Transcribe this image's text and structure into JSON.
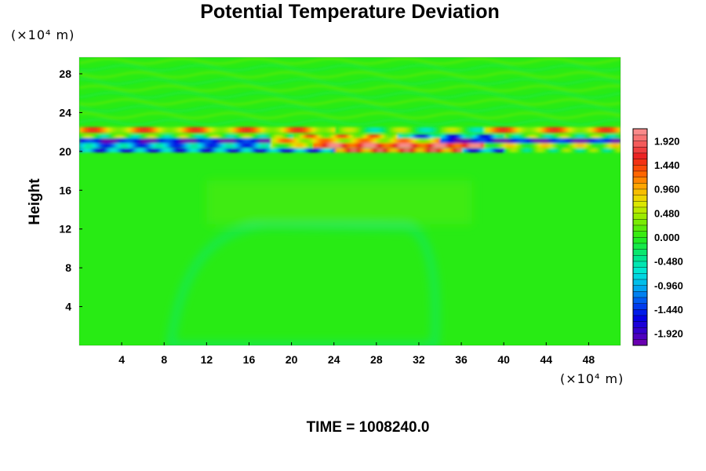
{
  "chart_data": {
    "type": "heatmap",
    "title": "Potential Temperature Deviation",
    "ylabel": "Height",
    "xlabel": "",
    "y_unit": "(×10⁴ m)",
    "x_unit": "(×10⁴ m)",
    "xlim": [
      0,
      51
    ],
    "ylim": [
      0,
      29.7
    ],
    "x_ticks": [
      "4",
      "8",
      "12",
      "16",
      "20",
      "24",
      "28",
      "32",
      "36",
      "40",
      "44",
      "48"
    ],
    "y_ticks": [
      "4",
      "8",
      "12",
      "16",
      "20",
      "24",
      "28"
    ],
    "colorbar": {
      "min": -2.16,
      "max": 2.16,
      "step": 0.12,
      "labels": [
        "1.920",
        "1.440",
        "0.960",
        "0.480",
        "0.000",
        "-0.480",
        "-0.960",
        "-1.440",
        "-1.920"
      ]
    },
    "field_description_bands": [
      {
        "y_range": [
          0,
          19.8
        ],
        "value": 0.0
      },
      {
        "y_range": [
          20.0,
          20.4
        ],
        "value": -1.5
      },
      {
        "y_range": [
          20.3,
          20.9
        ],
        "value": 1.5
      },
      {
        "y_range": [
          20.9,
          21.4
        ],
        "value": -1.9
      },
      {
        "y_range": [
          21.6,
          22.4
        ],
        "value": 1.0
      }
    ],
    "time_label": "TIME = 1008240.0"
  }
}
